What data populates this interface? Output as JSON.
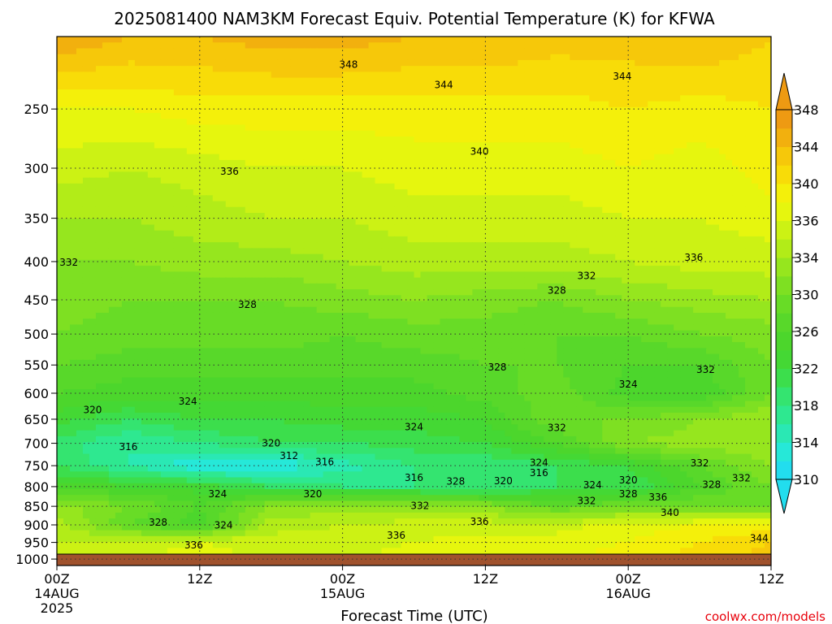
{
  "chart_data": {
    "type": "heatmap",
    "title": "2025081400 NAM3KM Forecast Equiv. Potential Temperature (K) for KFWA",
    "xlabel": "Forecast Time (UTC)",
    "ylabel": "",
    "credit": "coolwx.com/models",
    "x_ticks": [
      {
        "hours": 0,
        "label": "00Z",
        "sub1": "14AUG",
        "sub2": "2025"
      },
      {
        "hours": 12,
        "label": "12Z",
        "sub1": "",
        "sub2": ""
      },
      {
        "hours": 24,
        "label": "00Z",
        "sub1": "15AUG",
        "sub2": ""
      },
      {
        "hours": 36,
        "label": "12Z",
        "sub1": "",
        "sub2": ""
      },
      {
        "hours": 48,
        "label": "00Z",
        "sub1": "16AUG",
        "sub2": ""
      },
      {
        "hours": 60,
        "label": "12Z",
        "sub1": "",
        "sub2": ""
      }
    ],
    "xlim": [
      0,
      60
    ],
    "y_ticks": [
      "250",
      "300",
      "350",
      "400",
      "450",
      "500",
      "550",
      "600",
      "650",
      "700",
      "750",
      "800",
      "850",
      "900",
      "950",
      "1000"
    ],
    "ylim": [
      200,
      1020
    ],
    "y_axis": "pressure (hPa), log-scaled, top = low pressure",
    "colorbar": {
      "levels": [
        310,
        312,
        314,
        316,
        318,
        320,
        322,
        324,
        326,
        328,
        330,
        332,
        334,
        336,
        338,
        340,
        342,
        344,
        346,
        348
      ],
      "tick_labels": [
        "348",
        "344",
        "340",
        "336",
        "334",
        "330",
        "326",
        "322",
        "318",
        "314",
        "310"
      ],
      "colors": [
        "#22ddee",
        "#26e8d8",
        "#2ae8b4",
        "#2ee890",
        "#34e470",
        "#3cde4c",
        "#44d834",
        "#4cd62c",
        "#58d82a",
        "#68dc26",
        "#7ee022",
        "#96e61e",
        "#b2ec18",
        "#ccf214",
        "#e6f60e",
        "#f4f00a",
        "#f8dc08",
        "#f6c80a",
        "#f2b00e",
        "#ee9a12"
      ],
      "extend": "both"
    },
    "ground_color": "#a0522d",
    "ground_top_hPa": 985,
    "series": [
      {
        "name": "",
        "hours": [
          0,
          6,
          12,
          18,
          24,
          30,
          36,
          42,
          48,
          54,
          60
        ],
        "p_hPa": [
          200,
          250,
          300,
          350,
          400,
          450,
          500,
          550,
          600,
          650,
          700,
          750,
          800,
          850,
          900,
          950,
          1000
        ],
        "theta_e_K": [
          [
            348,
            346,
            346,
            347,
            347,
            346,
            346,
            345,
            345,
            346,
            344
          ],
          [
            340,
            340,
            341,
            341,
            341,
            341,
            341,
            341,
            342,
            341,
            342
          ],
          [
            337,
            336,
            337,
            338,
            338,
            339,
            339,
            339,
            340,
            339,
            341
          ],
          [
            334,
            334,
            335,
            336,
            336,
            337,
            337,
            337,
            338,
            338,
            339
          ],
          [
            332,
            332,
            333,
            333,
            334,
            335,
            335,
            335,
            336,
            337,
            337
          ],
          [
            331,
            330,
            330,
            330,
            331,
            332,
            331,
            330,
            332,
            333,
            334
          ],
          [
            330,
            329,
            329,
            329,
            328,
            329,
            329,
            328,
            328,
            330,
            331
          ],
          [
            328,
            327,
            327,
            327,
            327,
            327,
            328,
            328,
            326,
            326,
            330
          ],
          [
            326,
            325,
            325,
            325,
            325,
            325,
            327,
            329,
            325,
            324,
            330
          ],
          [
            323,
            320,
            322,
            322,
            323,
            323,
            324,
            330,
            330,
            332,
            334
          ],
          [
            319,
            316,
            318,
            320,
            320,
            321,
            322,
            326,
            332,
            333,
            334
          ],
          [
            320,
            316,
            312,
            312,
            315,
            318,
            318,
            320,
            322,
            328,
            332
          ],
          [
            325,
            324,
            323,
            320,
            318,
            318,
            318,
            320,
            320,
            326,
            330
          ],
          [
            333,
            330,
            326,
            332,
            333,
            333,
            332,
            328,
            330,
            330,
            328
          ],
          [
            335,
            328,
            325,
            335,
            336,
            337,
            337,
            337,
            339,
            340,
            341
          ],
          [
            336,
            337,
            338,
            337,
            337,
            338,
            339,
            339,
            340,
            342,
            344
          ],
          [
            337,
            338,
            339,
            338,
            338,
            339,
            340,
            340,
            341,
            343,
            345
          ]
        ]
      }
    ],
    "contour_labels": [
      {
        "text": "348",
        "hours": 24.5,
        "p": 218
      },
      {
        "text": "344",
        "hours": 32.5,
        "p": 232
      },
      {
        "text": "344",
        "hours": 47.5,
        "p": 226
      },
      {
        "text": "340",
        "hours": 35.5,
        "p": 285
      },
      {
        "text": "336",
        "hours": 14.5,
        "p": 303
      },
      {
        "text": "332",
        "hours": 1,
        "p": 401
      },
      {
        "text": "336",
        "hours": 53.5,
        "p": 395
      },
      {
        "text": "332",
        "hours": 44.5,
        "p": 418
      },
      {
        "text": "328",
        "hours": 16,
        "p": 457
      },
      {
        "text": "328",
        "hours": 42,
        "p": 437
      },
      {
        "text": "328",
        "hours": 37,
        "p": 554
      },
      {
        "text": "332",
        "hours": 54.5,
        "p": 558
      },
      {
        "text": "324",
        "hours": 11,
        "p": 615
      },
      {
        "text": "324",
        "hours": 48,
        "p": 584
      },
      {
        "text": "320",
        "hours": 3,
        "p": 632
      },
      {
        "text": "324",
        "hours": 30,
        "p": 666
      },
      {
        "text": "332",
        "hours": 42,
        "p": 667
      },
      {
        "text": "316",
        "hours": 6,
        "p": 708
      },
      {
        "text": "320",
        "hours": 18,
        "p": 700
      },
      {
        "text": "312",
        "hours": 19.5,
        "p": 728
      },
      {
        "text": "316",
        "hours": 22.5,
        "p": 741
      },
      {
        "text": "324",
        "hours": 40.5,
        "p": 743
      },
      {
        "text": "316",
        "hours": 40.5,
        "p": 767
      },
      {
        "text": "332",
        "hours": 54,
        "p": 744
      },
      {
        "text": "316",
        "hours": 30,
        "p": 778
      },
      {
        "text": "328",
        "hours": 33.5,
        "p": 787
      },
      {
        "text": "320",
        "hours": 37.5,
        "p": 786
      },
      {
        "text": "324",
        "hours": 45,
        "p": 796
      },
      {
        "text": "320",
        "hours": 48,
        "p": 784
      },
      {
        "text": "328",
        "hours": 55,
        "p": 795
      },
      {
        "text": "332",
        "hours": 57.5,
        "p": 779
      },
      {
        "text": "324",
        "hours": 13.5,
        "p": 818
      },
      {
        "text": "320",
        "hours": 21.5,
        "p": 818
      },
      {
        "text": "328",
        "hours": 48,
        "p": 818
      },
      {
        "text": "336",
        "hours": 50.5,
        "p": 827
      },
      {
        "text": "332",
        "hours": 30.5,
        "p": 849
      },
      {
        "text": "332",
        "hours": 44.5,
        "p": 836
      },
      {
        "text": "340",
        "hours": 51.5,
        "p": 867
      },
      {
        "text": "328",
        "hours": 8.5,
        "p": 893
      },
      {
        "text": "324",
        "hours": 14,
        "p": 901
      },
      {
        "text": "336",
        "hours": 35.5,
        "p": 891
      },
      {
        "text": "336",
        "hours": 28.5,
        "p": 930
      },
      {
        "text": "336",
        "hours": 11.5,
        "p": 958
      },
      {
        "text": "344",
        "hours": 59,
        "p": 938
      }
    ]
  }
}
